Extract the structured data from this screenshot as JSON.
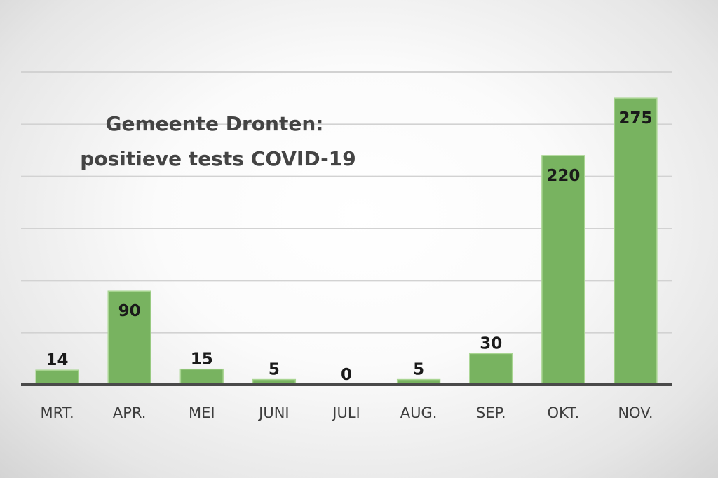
{
  "chart_data": {
    "type": "bar",
    "title": "Gemeente Dronten:",
    "subtitle": "positieve tests COVID-19",
    "categories": [
      "MRT.",
      "APR.",
      "MEI",
      "JUNI",
      "JULI",
      "AUG.",
      "SEP.",
      "OKT.",
      "NOV."
    ],
    "values": [
      14,
      90,
      15,
      5,
      0,
      5,
      30,
      220,
      275
    ],
    "ylim": [
      0,
      300
    ],
    "grid": true,
    "colors": {
      "bar": "#78b360",
      "axis": "#4a4a4a",
      "grid": "#d2d2d2"
    }
  }
}
